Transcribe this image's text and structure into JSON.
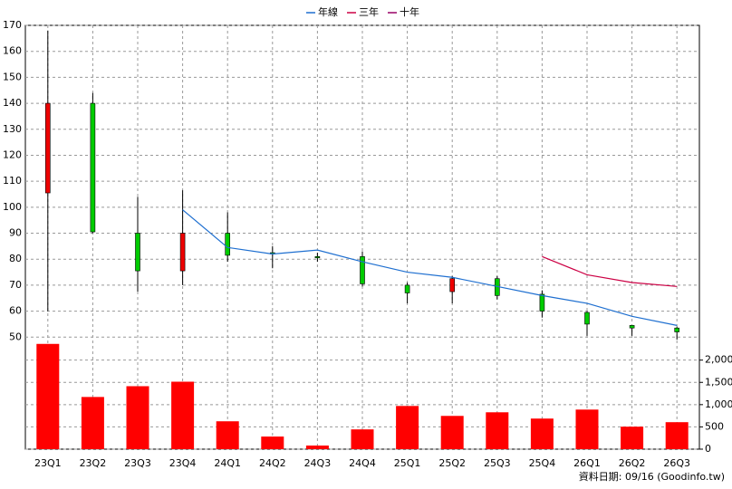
{
  "chart_data": [
    {
      "type": "candlestick",
      "categories": [
        "23Q1",
        "23Q2",
        "23Q3",
        "23Q4",
        "24Q1",
        "24Q2",
        "24Q3",
        "24Q4",
        "25Q1",
        "25Q2",
        "25Q3",
        "25Q4",
        "26Q1",
        "26Q2",
        "26Q3"
      ],
      "open": [
        105.5,
        140,
        90,
        75.5,
        90,
        82.5,
        81,
        81,
        70,
        67.5,
        72.5,
        66.5,
        59.5,
        54.5,
        53.5
      ],
      "high": [
        168,
        144,
        104,
        106.5,
        98,
        85,
        82.5,
        83,
        71,
        73.5,
        73.5,
        68,
        60,
        54.5,
        54
      ],
      "low": [
        60,
        90,
        67.5,
        70,
        79,
        76.5,
        79,
        69.5,
        63,
        63,
        64.5,
        57.5,
        50.5,
        50.5,
        49
      ],
      "close": [
        140,
        90.5,
        75.5,
        90,
        81.5,
        82,
        80.5,
        70.5,
        67,
        72.5,
        66,
        60,
        55,
        53.5,
        52
      ],
      "up_color": "#ee0000",
      "down_color": "#00cc00",
      "series": [
        {
          "name": "年線",
          "color": "#1e6fd0",
          "values": [
            null,
            null,
            null,
            99,
            84.5,
            82,
            83.5,
            79,
            75,
            73,
            69.5,
            66,
            63,
            58,
            54.5
          ]
        },
        {
          "name": "三年",
          "color": "#cc0044",
          "values": [
            null,
            null,
            null,
            null,
            null,
            null,
            null,
            null,
            null,
            null,
            null,
            81,
            74,
            71,
            69.5
          ]
        },
        {
          "name": "十年",
          "color": "#990066",
          "values": [
            null,
            null,
            null,
            null,
            null,
            null,
            null,
            null,
            null,
            null,
            null,
            null,
            null,
            null,
            null
          ]
        }
      ],
      "ylim": [
        48,
        170
      ],
      "yticks": [
        50,
        60,
        70,
        80,
        90,
        100,
        110,
        120,
        130,
        140,
        150,
        160,
        170
      ],
      "grid": true,
      "legend": "top"
    },
    {
      "type": "bar",
      "values": [
        2364,
        1172,
        1414,
        1515,
        626,
        283,
        81,
        444,
        970,
        747,
        828,
        687,
        889,
        505,
        606
      ],
      "color": "#ff0000",
      "ylim": [
        0,
        2400
      ],
      "yticks": [
        0,
        {
          "value": 500,
          "label": "500"
        },
        {
          "value": 1000,
          "label": "1,000"
        },
        {
          "value": 1500,
          "label": "1,500"
        },
        {
          "value": 2000,
          "label": "2,000"
        }
      ]
    }
  ],
  "footer": "資料日期: 09/16 (Goodinfo.tw)"
}
